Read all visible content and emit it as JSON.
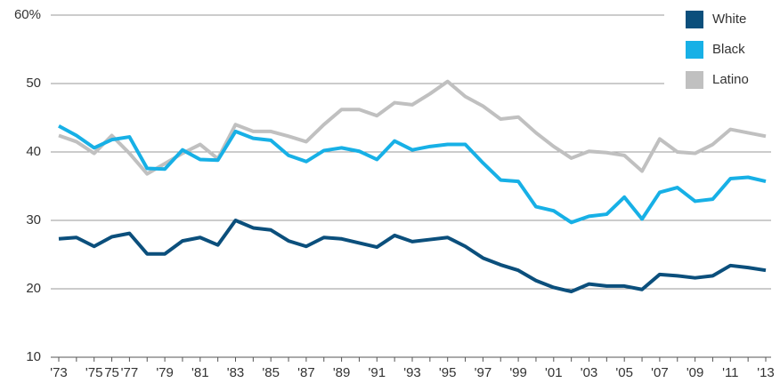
{
  "chart_data": {
    "type": "line",
    "categories": [
      "'73",
      null,
      "'75",
      "75",
      "'77",
      null,
      "'79",
      null,
      "'81",
      null,
      "'83",
      null,
      "'85",
      null,
      "'87",
      null,
      "'89",
      null,
      "'91",
      null,
      "'93",
      null,
      "'95",
      null,
      "'97",
      null,
      "'99",
      null,
      "'01",
      null,
      "'03",
      null,
      "'05",
      null,
      "'07",
      null,
      "'09",
      null,
      "'11",
      null,
      "'13"
    ],
    "series": [
      {
        "name": "White",
        "color": "#0b4f7c",
        "values": [
          27.3,
          27.5,
          26.2,
          27.6,
          28.1,
          25.1,
          25.1,
          27.0,
          27.5,
          26.4,
          30.0,
          28.9,
          28.6,
          27.0,
          26.2,
          27.5,
          27.3,
          26.7,
          26.1,
          27.8,
          26.9,
          27.2,
          27.5,
          26.2,
          24.5,
          23.5,
          22.7,
          21.2,
          20.2,
          19.6,
          20.7,
          20.4,
          20.4,
          19.9,
          22.1,
          21.9,
          21.6,
          21.9,
          23.4,
          23.1,
          22.7
        ]
      },
      {
        "name": "Black",
        "color": "#17b0e6",
        "values": [
          43.8,
          42.4,
          40.6,
          41.8,
          42.2,
          37.6,
          37.5,
          40.3,
          38.9,
          38.8,
          43.0,
          42.0,
          41.7,
          39.5,
          38.6,
          40.2,
          40.6,
          40.1,
          38.9,
          41.6,
          40.3,
          40.8,
          41.1,
          41.1,
          38.4,
          35.9,
          35.7,
          32.0,
          31.4,
          29.7,
          30.6,
          30.9,
          33.4,
          30.2,
          34.1,
          34.8,
          32.8,
          33.1,
          36.1,
          36.3,
          35.7
        ]
      },
      {
        "name": "Latino",
        "color": "#c0c0c0",
        "values": [
          42.4,
          41.5,
          39.8,
          42.4,
          39.8,
          36.8,
          38.3,
          39.8,
          41.1,
          39.0,
          44.0,
          43.0,
          43.0,
          42.3,
          41.5,
          44.0,
          46.2,
          46.2,
          45.3,
          47.2,
          46.9,
          48.5,
          50.3,
          48.1,
          46.7,
          44.8,
          45.1,
          42.8,
          40.8,
          39.1,
          40.1,
          39.9,
          39.5,
          37.2,
          41.9,
          40.0,
          39.8,
          41.1,
          43.3,
          42.8,
          42.3
        ]
      }
    ],
    "ylim": [
      10,
      60
    ],
    "yticks": [
      10,
      20,
      30,
      40,
      50,
      {
        "value": 60,
        "label": "60%"
      }
    ],
    "grid": true,
    "legend": "top-right"
  }
}
